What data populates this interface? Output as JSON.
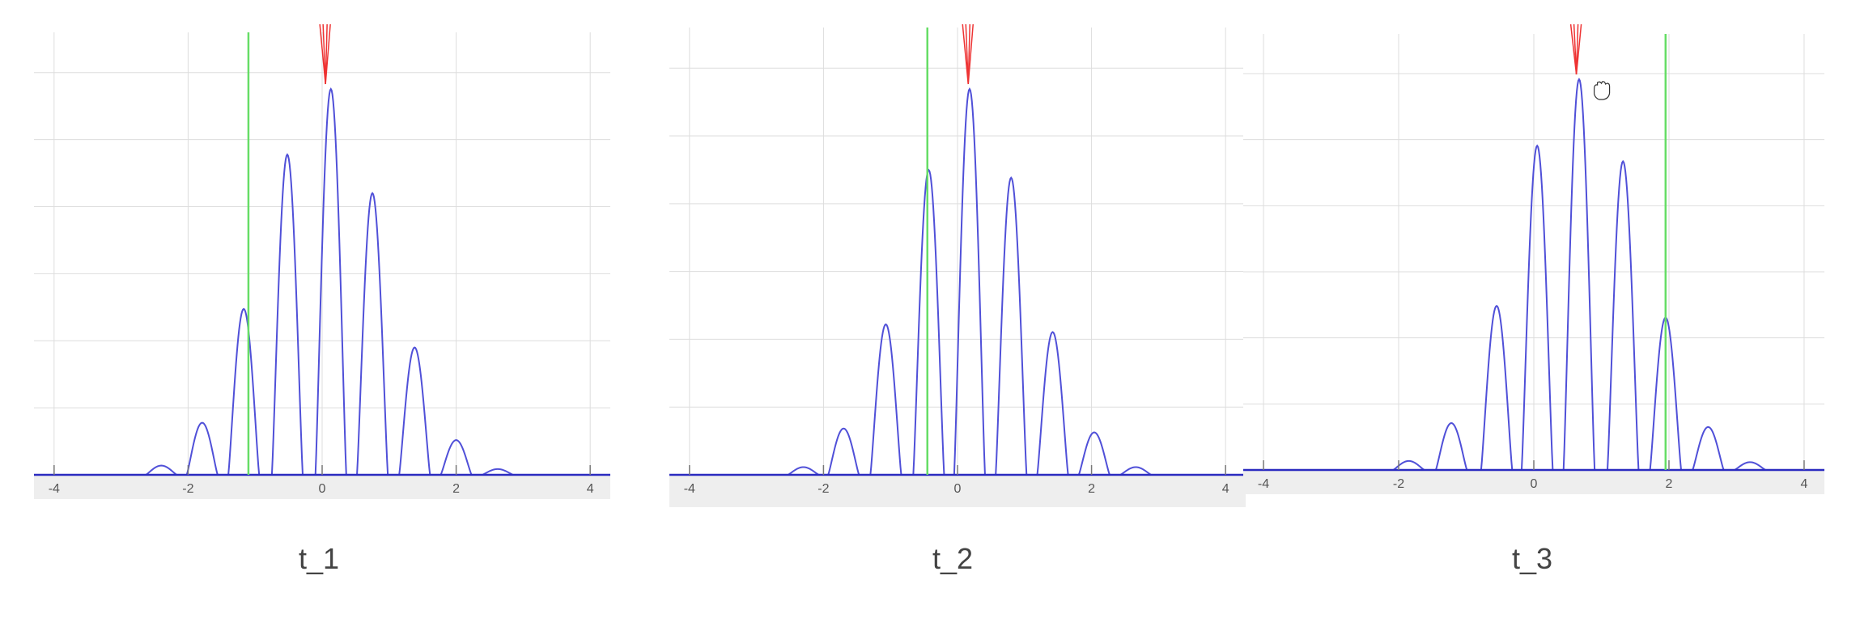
{
  "colors": {
    "background": "#ffffff",
    "plot_area": "#ffffff",
    "axis_band": "#eeeeee",
    "grid": "#dddddd",
    "curve": "#5050d8",
    "baseline": "#2b2bc0",
    "cursor_line": "#66dd66",
    "arrow": "#ee3333",
    "tick_label": "#555555",
    "caption": "#444444"
  },
  "icons": {
    "hand_cursor": "grab-hand-icon"
  },
  "chart_data": [
    {
      "type": "line",
      "caption": "t_1",
      "x_ticks": [
        "-4",
        "-2",
        "0",
        "2",
        "4"
      ],
      "xlim": [
        -4.3,
        4.3
      ],
      "ylim": [
        0,
        1.0
      ],
      "grid": true,
      "series": [
        {
          "lobes": [
            {
              "center": -2.4,
              "peak": 0.024
            },
            {
              "center": -1.79,
              "peak": 0.135
            },
            {
              "center": -1.17,
              "peak": 0.43
            },
            {
              "center": -0.52,
              "peak": 0.83
            },
            {
              "center": 0.13,
              "peak": 1.0
            },
            {
              "center": 0.75,
              "peak": 0.73
            },
            {
              "center": 1.38,
              "peak": 0.33
            },
            {
              "center": 2.0,
              "peak": 0.09
            },
            {
              "center": 2.62,
              "peak": 0.015
            }
          ],
          "lobe_half_width": 0.23
        }
      ],
      "green_line_x": -1.1,
      "red_arrow_x": 0.05,
      "show_hand_cursor": false
    },
    {
      "type": "line",
      "caption": "t_2",
      "x_ticks": [
        "-4",
        "-2",
        "0",
        "2",
        "4"
      ],
      "xlim": [
        -4.3,
        4.3
      ],
      "ylim": [
        0,
        1.0
      ],
      "grid": true,
      "series": [
        {
          "lobes": [
            {
              "center": -2.3,
              "peak": 0.02
            },
            {
              "center": -1.7,
              "peak": 0.12
            },
            {
              "center": -1.07,
              "peak": 0.39
            },
            {
              "center": -0.43,
              "peak": 0.79
            },
            {
              "center": 0.18,
              "peak": 1.0
            },
            {
              "center": 0.8,
              "peak": 0.77
            },
            {
              "center": 1.42,
              "peak": 0.37
            },
            {
              "center": 2.04,
              "peak": 0.11
            },
            {
              "center": 2.66,
              "peak": 0.02
            }
          ],
          "lobe_half_width": 0.23
        }
      ],
      "green_line_x": -0.45,
      "red_arrow_x": 0.16,
      "show_hand_cursor": false
    },
    {
      "type": "line",
      "caption": "t_3",
      "x_ticks": [
        "-4",
        "-2",
        "0",
        "2",
        "4"
      ],
      "xlim": [
        -4.3,
        4.3
      ],
      "ylim": [
        0,
        1.0
      ],
      "grid": true,
      "series": [
        {
          "lobes": [
            {
              "center": -1.85,
              "peak": 0.023
            },
            {
              "center": -1.22,
              "peak": 0.12
            },
            {
              "center": -0.55,
              "peak": 0.42
            },
            {
              "center": 0.05,
              "peak": 0.83
            },
            {
              "center": 0.67,
              "peak": 1.0
            },
            {
              "center": 1.32,
              "peak": 0.79
            },
            {
              "center": 1.95,
              "peak": 0.39
            },
            {
              "center": 2.58,
              "peak": 0.11
            },
            {
              "center": 3.2,
              "peak": 0.02
            }
          ],
          "lobe_half_width": 0.23
        }
      ],
      "green_line_x": 1.95,
      "red_arrow_x": 0.63,
      "show_hand_cursor": true
    }
  ]
}
